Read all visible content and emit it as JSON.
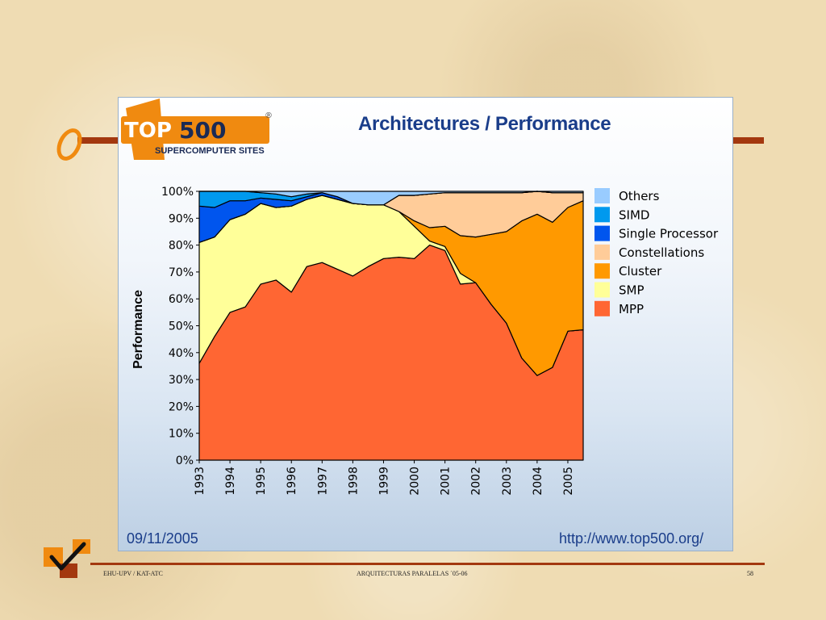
{
  "slide": {
    "footer_left": "EHU-UPV / KAT-ATC",
    "footer_center": "ARQUITECTURAS  PARALELAS  ´05-06",
    "page_number": "58"
  },
  "logo": {
    "brand_top": "TOP",
    "brand_num": "500",
    "registered": "®",
    "tagline": "SUPERCOMPUTER SITES"
  },
  "chart_data": {
    "type": "area",
    "stacked": true,
    "normalized": true,
    "title": "Architectures / Performance",
    "ylabel": "Performance",
    "xlabel": "",
    "ylim": [
      0,
      100
    ],
    "x_ticks": [
      "1993",
      "1994",
      "1995",
      "1996",
      "1997",
      "1998",
      "1999",
      "2000",
      "2001",
      "2002",
      "2003",
      "2004",
      "2005"
    ],
    "y_ticks": [
      "0%",
      "10%",
      "20%",
      "30%",
      "40%",
      "50%",
      "60%",
      "70%",
      "80%",
      "90%",
      "100%"
    ],
    "x": [
      1993.0,
      1993.5,
      1994.0,
      1994.5,
      1995.0,
      1995.5,
      1996.0,
      1996.5,
      1997.0,
      1997.5,
      1998.0,
      1998.5,
      1999.0,
      1999.5,
      2000.0,
      2000.5,
      2001.0,
      2001.5,
      2002.0,
      2002.5,
      2003.0,
      2003.5,
      2004.0,
      2004.5,
      2005.0,
      2005.5
    ],
    "legend_position": "right",
    "series": [
      {
        "name": "MPP",
        "color": "#ff6633",
        "values": [
          36,
          46,
          55,
          57,
          65.5,
          67,
          62.5,
          72,
          73.5,
          71,
          68.5,
          72,
          75,
          75.5,
          75,
          80,
          78,
          65.5,
          66,
          58,
          51,
          38,
          31.5,
          34.5,
          48,
          48.5
        ]
      },
      {
        "name": "SMP",
        "color": "#ffff99",
        "values": [
          45,
          37,
          34.5,
          34.5,
          30,
          27,
          32,
          25,
          25,
          26,
          27,
          23,
          20,
          17,
          12,
          1.5,
          1.5,
          4,
          0,
          0,
          0,
          0,
          0,
          0,
          0,
          0
        ]
      },
      {
        "name": "Cluster",
        "color": "#ff9900",
        "values": [
          0,
          0,
          0,
          0,
          0,
          0,
          0,
          0,
          0,
          0,
          0,
          0,
          0,
          0,
          2,
          5,
          7.5,
          14,
          17,
          26,
          34,
          51,
          60,
          54,
          46,
          48
        ]
      },
      {
        "name": "Constellations",
        "color": "#ffcc99",
        "values": [
          0,
          0,
          0,
          0,
          0,
          0,
          0,
          0,
          0,
          0,
          0,
          0,
          0,
          6,
          9.5,
          12.5,
          12.5,
          16,
          16.5,
          15.5,
          14.5,
          10.5,
          8.5,
          11,
          5.5,
          3
        ]
      },
      {
        "name": "Single Processor",
        "color": "#0055ee",
        "values": [
          13.5,
          11,
          7,
          5,
          2,
          3,
          2,
          1,
          1,
          1,
          0,
          0,
          0,
          0,
          0,
          0,
          0,
          0,
          0,
          0,
          0,
          0,
          0,
          0,
          0,
          0
        ]
      },
      {
        "name": "SIMD",
        "color": "#0099ee",
        "values": [
          5.5,
          6,
          3.5,
          3.5,
          2,
          2,
          1.5,
          1,
          0,
          0,
          0,
          0,
          0,
          0,
          0,
          0,
          0,
          0,
          0,
          0,
          0,
          0,
          0,
          0,
          0,
          0
        ]
      },
      {
        "name": "Others",
        "color": "#99ccff",
        "values": [
          0,
          0,
          0,
          0,
          0.5,
          1,
          2,
          1,
          0.5,
          2,
          4.5,
          5,
          5,
          1.5,
          1.5,
          1,
          0.5,
          0.5,
          0.5,
          0.5,
          0.5,
          0.5,
          0,
          0.5,
          0.5,
          0.5
        ]
      }
    ],
    "legend_order": [
      "Others",
      "SIMD",
      "Single Processor",
      "Constellations",
      "Cluster",
      "SMP",
      "MPP"
    ],
    "footer_date": "09/11/2005",
    "footer_url": "http://www.top500.org/"
  }
}
